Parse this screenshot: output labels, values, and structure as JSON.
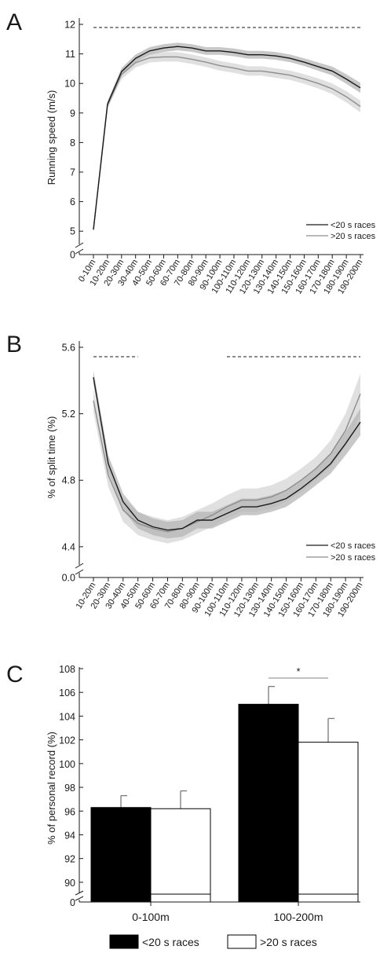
{
  "panels": [
    {
      "letter": "A",
      "chart_data": {
        "type": "line",
        "ylabel": "Running speed (m/s)",
        "ylim": [
          4.5,
          12
        ],
        "yticks": [
          "5",
          "6",
          "7",
          "8",
          "9",
          "10",
          "11",
          "12"
        ],
        "yaxis_zero_label": "0",
        "categories": [
          "0-10m",
          "10-20m",
          "20-30m",
          "30-40m",
          "40-50m",
          "50-60m",
          "60-70m",
          "70-80m",
          "80-90m",
          "90-100m",
          "100-110m",
          "110-120m",
          "120-130m",
          "130-140m",
          "140-150m",
          "150-160m",
          "160-170m",
          "170-180m",
          "180-190m",
          "190-200m"
        ],
        "series": [
          {
            "name": "<20 s races",
            "color": "#1a1a1a",
            "band": "#b5b5b5",
            "values": [
              5.05,
              9.3,
              10.4,
              10.85,
              11.1,
              11.2,
              11.25,
              11.2,
              11.1,
              11.1,
              11.05,
              10.97,
              10.97,
              10.93,
              10.85,
              10.72,
              10.57,
              10.42,
              10.15,
              9.85
            ],
            "sd": [
              0.0,
              0.1,
              0.12,
              0.13,
              0.13,
              0.13,
              0.13,
              0.13,
              0.13,
              0.13,
              0.13,
              0.13,
              0.13,
              0.13,
              0.13,
              0.13,
              0.14,
              0.15,
              0.16,
              0.17
            ]
          },
          {
            "name": ">20 s races",
            "color": "#8e8e8e",
            "band": "#dadada",
            "values": [
              5.05,
              9.25,
              10.3,
              10.7,
              10.87,
              10.9,
              10.9,
              10.82,
              10.72,
              10.6,
              10.52,
              10.42,
              10.42,
              10.35,
              10.28,
              10.15,
              10.0,
              9.82,
              9.55,
              9.22
            ],
            "sd": [
              0.0,
              0.1,
              0.15,
              0.16,
              0.16,
              0.16,
              0.16,
              0.16,
              0.16,
              0.16,
              0.16,
              0.16,
              0.16,
              0.16,
              0.16,
              0.16,
              0.17,
              0.18,
              0.19,
              0.2
            ]
          }
        ],
        "significance_from": "0-10m",
        "significance_to": "190-200m",
        "legend": "bottom-right"
      }
    },
    {
      "letter": "B",
      "chart_data": {
        "type": "line",
        "ylabel": "% of split time (%)",
        "ylim": [
          4.3,
          5.6
        ],
        "yticks": [
          "4.4",
          "4.8",
          "5.2",
          "5.6"
        ],
        "yaxis_zero_label": "0.0",
        "categories": [
          "10-20m",
          "20-30m",
          "30-40m",
          "40-50m",
          "50-60m",
          "60-70m",
          "70-80m",
          "80-90m",
          "90-100m",
          "100-110m",
          "110-120m",
          "120-130m",
          "130-140m",
          "140-150m",
          "150-160m",
          "160-170m",
          "170-180m",
          "180-190m",
          "190-200m"
        ],
        "series": [
          {
            "name": "<20 s races",
            "color": "#1a1a1a",
            "band": "#b5b5b5",
            "values": [
              5.42,
              4.9,
              4.67,
              4.56,
              4.52,
              4.5,
              4.51,
              4.56,
              4.56,
              4.6,
              4.64,
              4.64,
              4.66,
              4.69,
              4.75,
              4.82,
              4.9,
              5.02,
              5.15
            ],
            "sd": [
              0.04,
              0.05,
              0.05,
              0.05,
              0.05,
              0.05,
              0.05,
              0.05,
              0.05,
              0.05,
              0.05,
              0.05,
              0.05,
              0.05,
              0.05,
              0.05,
              0.06,
              0.07,
              0.08
            ]
          },
          {
            "name": ">20 s races",
            "color": "#8e8e8e",
            "band": "#dadada",
            "values": [
              5.28,
              4.83,
              4.62,
              4.54,
              4.51,
              4.49,
              4.51,
              4.55,
              4.59,
              4.64,
              4.68,
              4.68,
              4.7,
              4.74,
              4.8,
              4.87,
              4.96,
              5.1,
              5.32
            ],
            "sd": [
              0.07,
              0.07,
              0.07,
              0.07,
              0.07,
              0.07,
              0.07,
              0.07,
              0.07,
              0.07,
              0.07,
              0.07,
              0.07,
              0.07,
              0.07,
              0.07,
              0.08,
              0.1,
              0.12
            ]
          }
        ],
        "significance_ranges": [
          [
            "10-20m",
            "40-50m"
          ],
          [
            "100-110m",
            "190-200m"
          ]
        ],
        "legend": "bottom-right"
      }
    },
    {
      "letter": "C",
      "chart_data": {
        "type": "bar",
        "ylabel": "% of personal record (%)",
        "ylim": [
          89,
          108
        ],
        "yticks": [
          "90",
          "92",
          "94",
          "96",
          "98",
          "100",
          "102",
          "104",
          "106",
          "108"
        ],
        "yaxis_zero_label": "0",
        "categories": [
          "0-100m",
          "100-200m"
        ],
        "series": [
          {
            "name": "<20 s races",
            "fill": "#000000",
            "values": [
              96.3,
              105.0
            ],
            "sd": [
              1.0,
              1.5
            ]
          },
          {
            "name": ">20 s races",
            "fill": "#ffffff",
            "values": [
              96.2,
              101.8
            ],
            "sd": [
              1.5,
              2.0
            ]
          }
        ],
        "annotation": "*",
        "annotation_category": "100-200m",
        "legend": "bottom"
      }
    }
  ]
}
